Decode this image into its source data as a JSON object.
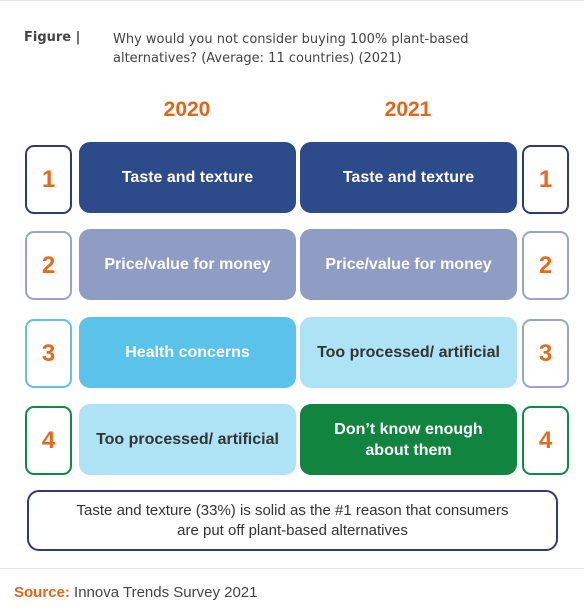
{
  "figure": {
    "label": "Figure  |",
    "title": "Why would you not consider buying 100% plant-based alternatives? (Average: 11 countries) (2021)"
  },
  "years": {
    "left": "2020",
    "right": "2021"
  },
  "rows": [
    {
      "rank": "1",
      "left": "Taste and texture",
      "right": "Taste and texture"
    },
    {
      "rank": "2",
      "left": "Price/value for money",
      "right": "Price/value for money"
    },
    {
      "rank": "3",
      "left": "Health concerns",
      "right": "Too processed/ artificial"
    },
    {
      "rank": "4",
      "left": "Too processed/ artificial",
      "right": "Don’t know enough about them"
    }
  ],
  "note": "Taste and texture (33%) is solid as the #1 reason that consumers are put off plant-based alternatives",
  "source": {
    "label": "Source:",
    "text": "Innova Trends Survey 2021"
  },
  "colors": {
    "orange": "#e0661a",
    "taste": "#2d4a8a",
    "price": "#8f9dc4",
    "health": "#5bc2ea",
    "processed": "#aee3f5",
    "dont_know": "#11843f",
    "rank1_border": "#2e3b78",
    "rank2_border": "#9aa4c8",
    "rank3_border": "#63c1e4",
    "rank4_border": "#0f8a48"
  }
}
